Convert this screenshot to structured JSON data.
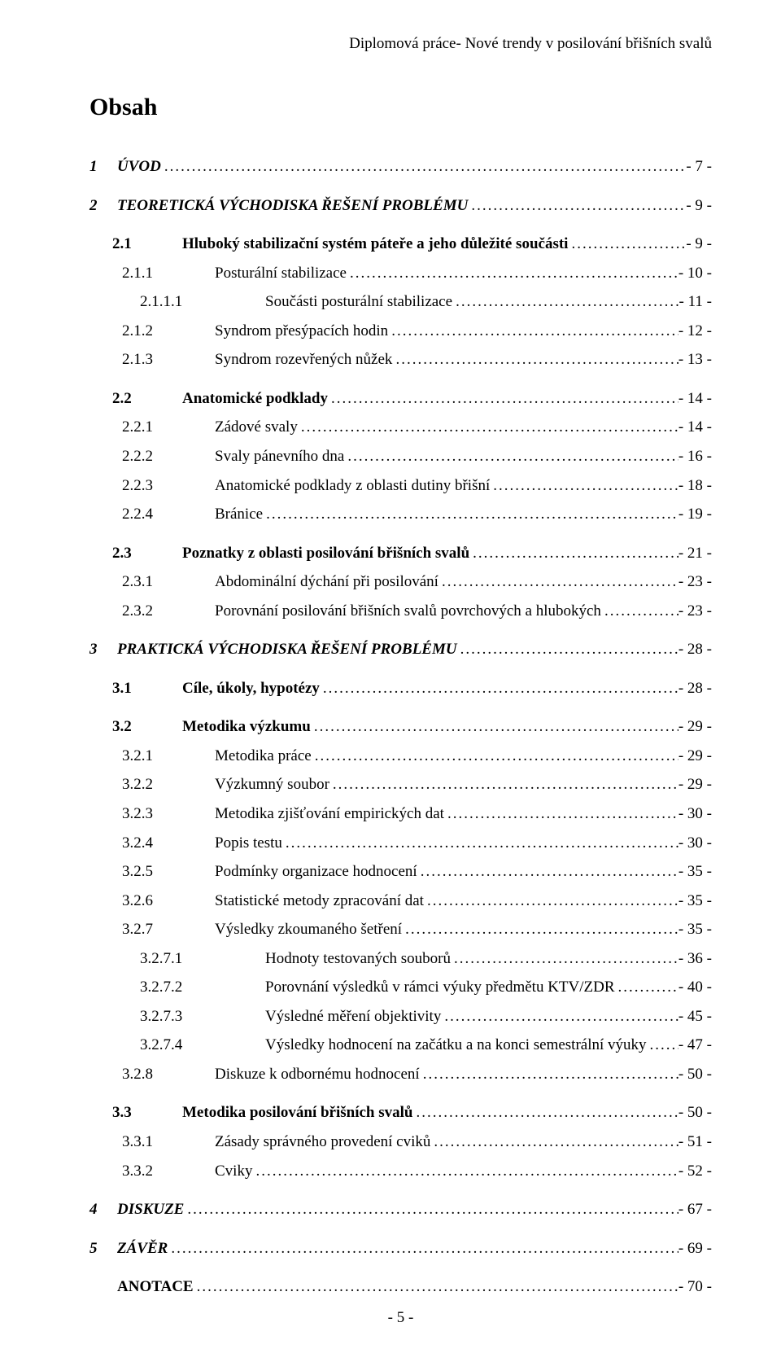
{
  "header": {
    "running_title": "Diplomová práce- Nové trendy v posilování břišních svalů"
  },
  "title": "Obsah",
  "footer": {
    "page_number": "- 5 -"
  },
  "leader_dots": "..................................................................................................................................................................................................",
  "toc": [
    {
      "level": 0,
      "num": "1",
      "label": "ÚVOD",
      "page": "- 7 -",
      "style": "bolditalic",
      "gap": false
    },
    {
      "level": 0,
      "num": "2",
      "label": "TEORETICKÁ VÝCHODISKA ŘEŠENÍ PROBLÉMU",
      "page": "- 9 -",
      "style": "bolditalic",
      "gap": true
    },
    {
      "level": 1,
      "num": "2.1",
      "label": "Hluboký stabilizační systém páteře a jeho důležité součásti",
      "page": "- 9 -",
      "style": "bold",
      "gap": true
    },
    {
      "level": 2,
      "num": "2.1.1",
      "label": "Posturální stabilizace",
      "page": "- 10 -",
      "style": "",
      "gap": false
    },
    {
      "level": 3,
      "num": "2.1.1.1",
      "label": "Součásti posturální stabilizace",
      "page": "- 11 -",
      "style": "",
      "gap": false
    },
    {
      "level": 2,
      "num": "2.1.2",
      "label": "Syndrom přesýpacích hodin",
      "page": "- 12 -",
      "style": "",
      "gap": false
    },
    {
      "level": 2,
      "num": "2.1.3",
      "label": "Syndrom rozevřených nůžek",
      "page": "- 13 -",
      "style": "",
      "gap": false
    },
    {
      "level": 1,
      "num": "2.2",
      "label": "Anatomické podklady",
      "page": "- 14 -",
      "style": "bold",
      "gap": true
    },
    {
      "level": 2,
      "num": "2.2.1",
      "label": "Zádové svaly",
      "page": "- 14 -",
      "style": "",
      "gap": false
    },
    {
      "level": 2,
      "num": "2.2.2",
      "label": "Svaly pánevního dna",
      "page": "- 16 -",
      "style": "",
      "gap": false
    },
    {
      "level": 2,
      "num": "2.2.3",
      "label": "Anatomické podklady z oblasti dutiny břišní",
      "page": "- 18 -",
      "style": "",
      "gap": false
    },
    {
      "level": 2,
      "num": "2.2.4",
      "label": "Bránice",
      "page": "- 19 -",
      "style": "",
      "gap": false
    },
    {
      "level": 1,
      "num": "2.3",
      "label": "Poznatky z oblasti posilování břišních svalů",
      "page": "- 21 -",
      "style": "bold",
      "gap": true
    },
    {
      "level": 2,
      "num": "2.3.1",
      "label": "Abdominální dýchání při posilování",
      "page": "- 23 -",
      "style": "",
      "gap": false
    },
    {
      "level": 2,
      "num": "2.3.2",
      "label": "Porovnání posilování břišních svalů povrchových a hlubokých",
      "page": "- 23 -",
      "style": "",
      "gap": false
    },
    {
      "level": 0,
      "num": "3",
      "label": "PRAKTICKÁ VÝCHODISKA ŘEŠENÍ PROBLÉMU",
      "page": "- 28 -",
      "style": "bolditalic",
      "gap": true
    },
    {
      "level": 1,
      "num": "3.1",
      "label": "Cíle, úkoly, hypotézy",
      "page": "- 28 -",
      "style": "bold",
      "gap": true
    },
    {
      "level": 1,
      "num": "3.2",
      "label": "Metodika výzkumu",
      "page": "- 29 -",
      "style": "bold",
      "gap": true
    },
    {
      "level": 2,
      "num": "3.2.1",
      "label": "Metodika práce",
      "page": "- 29 -",
      "style": "",
      "gap": false
    },
    {
      "level": 2,
      "num": "3.2.2",
      "label": "Výzkumný soubor",
      "page": "- 29 -",
      "style": "",
      "gap": false
    },
    {
      "level": 2,
      "num": "3.2.3",
      "label": "Metodika zjišťování empirických dat",
      "page": "- 30 -",
      "style": "",
      "gap": false
    },
    {
      "level": 2,
      "num": "3.2.4",
      "label": "Popis testu",
      "page": "- 30 -",
      "style": "",
      "gap": false
    },
    {
      "level": 2,
      "num": "3.2.5",
      "label": "Podmínky organizace hodnocení",
      "page": "- 35 -",
      "style": "",
      "gap": false
    },
    {
      "level": 2,
      "num": "3.2.6",
      "label": "Statistické metody zpracování dat",
      "page": "- 35 -",
      "style": "",
      "gap": false
    },
    {
      "level": 2,
      "num": "3.2.7",
      "label": "Výsledky zkoumaného šetření",
      "page": "- 35 -",
      "style": "",
      "gap": false
    },
    {
      "level": 3,
      "num": "3.2.7.1",
      "label": "Hodnoty testovaných souborů",
      "page": "- 36 -",
      "style": "",
      "gap": false
    },
    {
      "level": 3,
      "num": "3.2.7.2",
      "label": "Porovnání výsledků v rámci výuky předmětu KTV/ZDR",
      "page": "- 40 -",
      "style": "",
      "gap": false
    },
    {
      "level": 3,
      "num": "3.2.7.3",
      "label": "Výsledné měření objektivity",
      "page": "- 45 -",
      "style": "",
      "gap": false
    },
    {
      "level": 3,
      "num": "3.2.7.4",
      "label": "Výsledky hodnocení na začátku a na konci semestrální výuky",
      "page": "- 47 -",
      "style": "",
      "gap": false
    },
    {
      "level": 2,
      "num": "3.2.8",
      "label": "Diskuze k odbornému hodnocení",
      "page": "- 50 -",
      "style": "",
      "gap": false
    },
    {
      "level": 1,
      "num": "3.3",
      "label": "Metodika posilování břišních svalů",
      "page": "- 50 -",
      "style": "bold",
      "gap": true
    },
    {
      "level": 2,
      "num": "3.3.1",
      "label": "Zásady správného provedení cviků",
      "page": "- 51 -",
      "style": "",
      "gap": false
    },
    {
      "level": 2,
      "num": "3.3.2",
      "label": "Cviky",
      "page": "- 52 -",
      "style": "",
      "gap": false
    },
    {
      "level": 0,
      "num": "4",
      "label": "DISKUZE",
      "page": "- 67 -",
      "style": "bolditalic",
      "gap": true
    },
    {
      "level": 0,
      "num": "5",
      "label": "ZÁVĚR",
      "page": "- 69 -",
      "style": "bolditalic",
      "gap": true
    },
    {
      "level": 0,
      "num": "",
      "label": "ANOTACE",
      "page": "- 70 -",
      "style": "bold",
      "gap": true
    }
  ]
}
